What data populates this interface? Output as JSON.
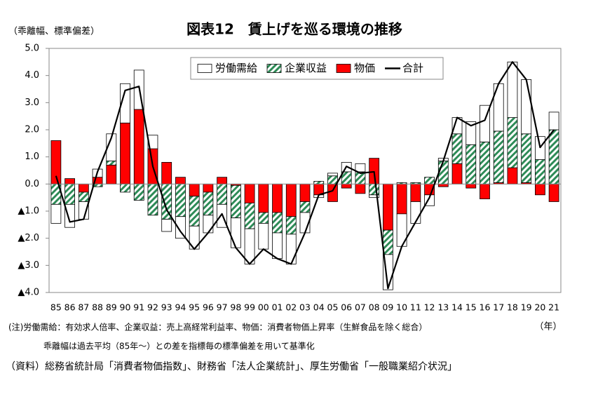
{
  "chart_data": {
    "type": "bar",
    "title": "図表12　賃上げを巡る環境の推移",
    "y_axis_label": "（乖離幅、標準偏差）",
    "x_axis_label": "（年）",
    "notes": [
      "(注)労働需給：有効求人倍率、企業収益：売上高経常利益率、物価：消費者物価上昇率（生鮮食品を除く総合）",
      "乖離幅は過去平均（85年～）との差を指標毎の標準偏差を用いて基準化",
      "（資料）総務省統計局「消費者物価指数」、財務省「法人企業統計」、厚生労働省「一般職業紹介状況」"
    ],
    "stacked": true,
    "legend": "top",
    "categories": [
      "85",
      "86",
      "87",
      "88",
      "89",
      "90",
      "91",
      "92",
      "93",
      "94",
      "95",
      "96",
      "97",
      "98",
      "99",
      "00",
      "01",
      "02",
      "03",
      "04",
      "05",
      "06",
      "07",
      "08",
      "09",
      "10",
      "11",
      "12",
      "13",
      "14",
      "15",
      "16",
      "17",
      "18",
      "19",
      "20",
      "21"
    ],
    "series": [
      {
        "name": "物価",
        "type": "bar",
        "color": "#ff0000",
        "values": [
          1.6,
          0.2,
          -0.3,
          0.25,
          0.7,
          2.25,
          2.75,
          1.3,
          0.8,
          0.25,
          -0.45,
          -0.3,
          0.25,
          -0.05,
          -0.7,
          -1.05,
          -1.05,
          -1.2,
          -0.65,
          -0.4,
          -0.65,
          -0.15,
          -0.35,
          0.95,
          -1.7,
          -1.1,
          -0.65,
          -0.4,
          -0.1,
          0.75,
          -0.15,
          -0.55,
          0.05,
          0.6,
          0.05,
          -0.4,
          -0.65
        ]
      },
      {
        "name": "企業収益",
        "type": "bar",
        "color": "#2e8b57",
        "pattern": "hatch",
        "values": [
          -0.75,
          -0.75,
          -0.35,
          -0.1,
          0.15,
          -0.3,
          -0.6,
          -1.15,
          -1.3,
          -1.2,
          -1.1,
          -0.85,
          -0.75,
          -1.2,
          -0.95,
          -0.4,
          -0.75,
          -0.65,
          -0.4,
          0.1,
          0.3,
          0.45,
          0.45,
          -0.4,
          -0.9,
          0.05,
          0.05,
          0.25,
          0.85,
          1.1,
          1.45,
          1.55,
          1.9,
          1.85,
          1.8,
          0.9,
          2.0
        ]
      },
      {
        "name": "労働需給",
        "type": "bar",
        "color": "#ffffff",
        "values": [
          -0.7,
          -0.85,
          -0.65,
          0.3,
          1.0,
          1.45,
          1.45,
          0.5,
          -0.45,
          -0.8,
          -0.85,
          -0.65,
          -0.85,
          -1.1,
          -1.3,
          -0.95,
          -0.95,
          -1.1,
          -0.75,
          -0.1,
          0.1,
          0.35,
          0.3,
          -0.1,
          -1.3,
          -1.2,
          -0.8,
          -0.4,
          0.1,
          0.6,
          0.85,
          1.35,
          1.75,
          2.05,
          2.0,
          0.85,
          0.65
        ]
      },
      {
        "name": "合計",
        "type": "line",
        "color": "#000000",
        "values": [
          0.3,
          -1.4,
          -1.3,
          0.45,
          1.7,
          3.45,
          3.6,
          0.65,
          -0.95,
          -1.75,
          -2.4,
          -1.8,
          -1.1,
          -2.35,
          -2.95,
          -2.4,
          -2.75,
          -2.95,
          -1.8,
          -0.4,
          -0.25,
          0.65,
          0.4,
          0.45,
          -3.85,
          -2.3,
          -1.4,
          -0.5,
          0.85,
          2.45,
          2.15,
          2.35,
          3.7,
          4.5,
          3.85,
          1.35,
          2.0
        ]
      }
    ],
    "legend_order": [
      2,
      1,
      0,
      3
    ],
    "ylim": [
      -4,
      5
    ],
    "yticks": [
      {
        "value": 5,
        "label": "5.0"
      },
      {
        "value": 4,
        "label": "4.0"
      },
      {
        "value": 3,
        "label": "3.0"
      },
      {
        "value": 2,
        "label": "2.0"
      },
      {
        "value": 1,
        "label": "1.0"
      },
      {
        "value": 0,
        "label": "0.0"
      },
      {
        "value": -1,
        "label": "▲1.0"
      },
      {
        "value": -2,
        "label": "▲2.0"
      },
      {
        "value": -3,
        "label": "▲3.0"
      },
      {
        "value": -4,
        "label": "▲4.0"
      }
    ]
  }
}
